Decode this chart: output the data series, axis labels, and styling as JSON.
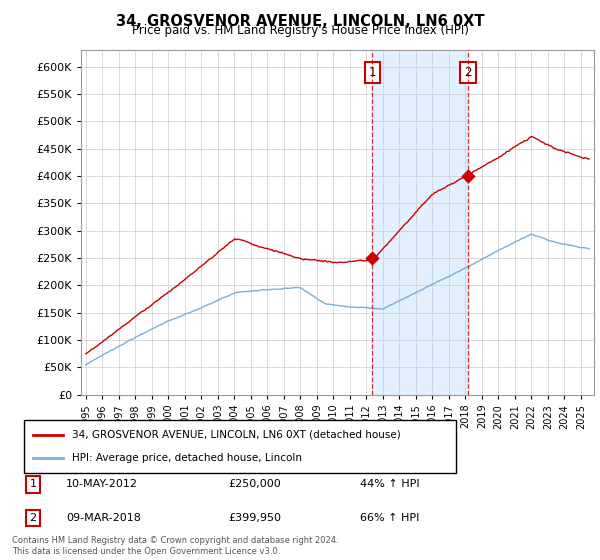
{
  "title": "34, GROSVENOR AVENUE, LINCOLN, LN6 0XT",
  "subtitle": "Price paid vs. HM Land Registry's House Price Index (HPI)",
  "legend_line1": "34, GROSVENOR AVENUE, LINCOLN, LN6 0XT (detached house)",
  "legend_line2": "HPI: Average price, detached house, Lincoln",
  "annotation1_date": "10-MAY-2012",
  "annotation1_price": "£250,000",
  "annotation1_hpi": "44% ↑ HPI",
  "annotation2_date": "09-MAR-2018",
  "annotation2_price": "£399,950",
  "annotation2_hpi": "66% ↑ HPI",
  "footnote": "Contains HM Land Registry data © Crown copyright and database right 2024.\nThis data is licensed under the Open Government Licence v3.0.",
  "red_color": "#cc0000",
  "blue_color": "#7bafd4",
  "shade_color": "#ddeeff",
  "vline_color": "#cc0000",
  "ylim": [
    0,
    630000
  ],
  "yticks": [
    0,
    50000,
    100000,
    150000,
    200000,
    250000,
    300000,
    350000,
    400000,
    450000,
    500000,
    550000,
    600000
  ],
  "xlim_start": 1994.7,
  "xlim_end": 2025.8,
  "sale1_year": 2012.37,
  "sale1_val": 250000,
  "sale2_year": 2018.17,
  "sale2_val": 399950
}
